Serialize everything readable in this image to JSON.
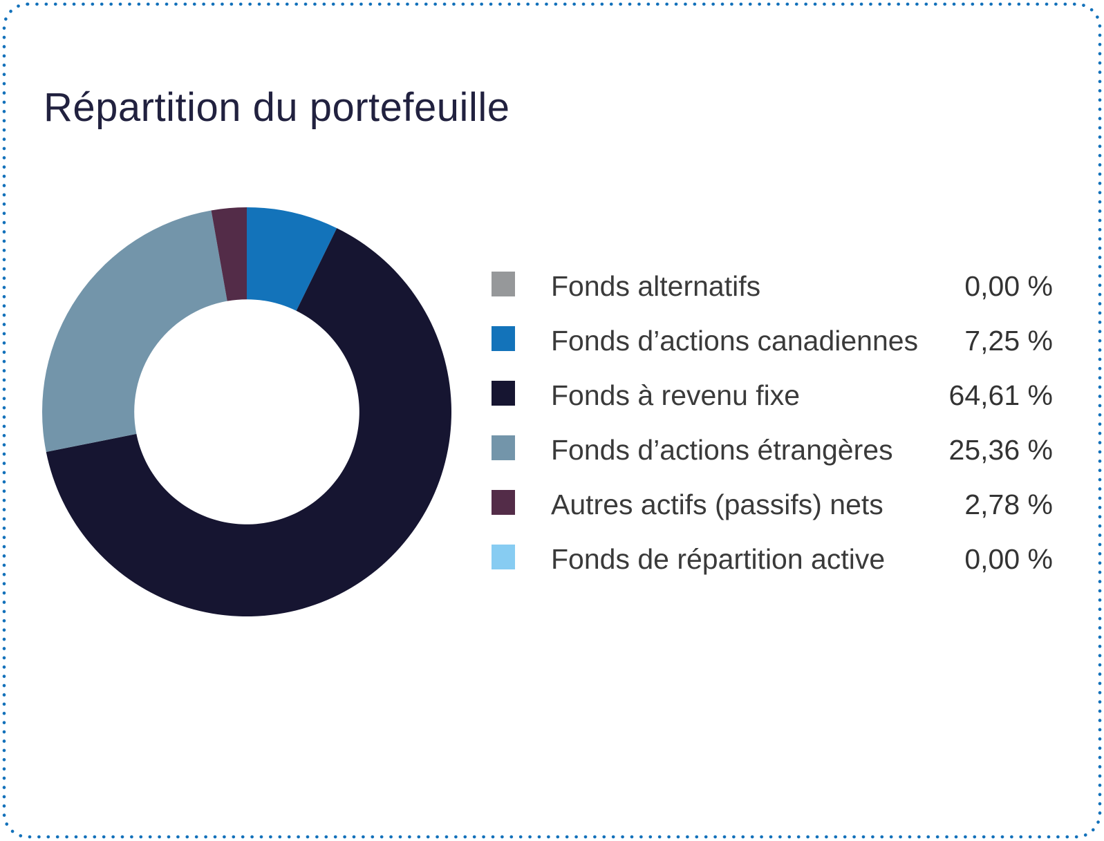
{
  "title": "Répartition du portefeuille",
  "border": {
    "color": "#1371BA"
  },
  "legend": {
    "items": [
      {
        "label": "Fonds alternatifs",
        "value_label": "0,00 %",
        "color": "#96989A",
        "color_name": "gray"
      },
      {
        "label": "Fonds d’actions canadiennes",
        "value_label": "7,25 %",
        "color": "#1373BA",
        "color_name": "blue"
      },
      {
        "label": "Fonds à revenu fixe",
        "value_label": "64,61 %",
        "color": "#161531",
        "color_name": "dark-navy"
      },
      {
        "label": "Fonds d’actions étrangères",
        "value_label": "25,36 %",
        "color": "#7395AA",
        "color_name": "slate-blue"
      },
      {
        "label": "Autres actifs (passifs) nets",
        "value_label": "2,78 %",
        "color": "#532C48",
        "color_name": "plum"
      },
      {
        "label": "Fonds de répartition active",
        "value_label": "0,00 %",
        "color": "#87CCF2",
        "color_name": "light-blue"
      }
    ]
  },
  "chart_data": {
    "type": "pie",
    "title": "Répartition du portefeuille",
    "labels": [
      "Fonds alternatifs",
      "Fonds d’actions canadiennes",
      "Fonds à revenu fixe",
      "Fonds d’actions étrangères",
      "Autres actifs (passifs) nets",
      "Fonds de répartition active"
    ],
    "values": [
      0.0,
      7.25,
      64.61,
      25.36,
      2.78,
      0.0
    ],
    "colors": [
      "#96989A",
      "#1373BA",
      "#161531",
      "#7395AA",
      "#532C48",
      "#87CCF2"
    ],
    "hole_ratio": 0.55,
    "start_angle": "top",
    "direction": "clockwise",
    "legend_position": "right",
    "value_suffix": " %",
    "decimal_separator": ","
  }
}
